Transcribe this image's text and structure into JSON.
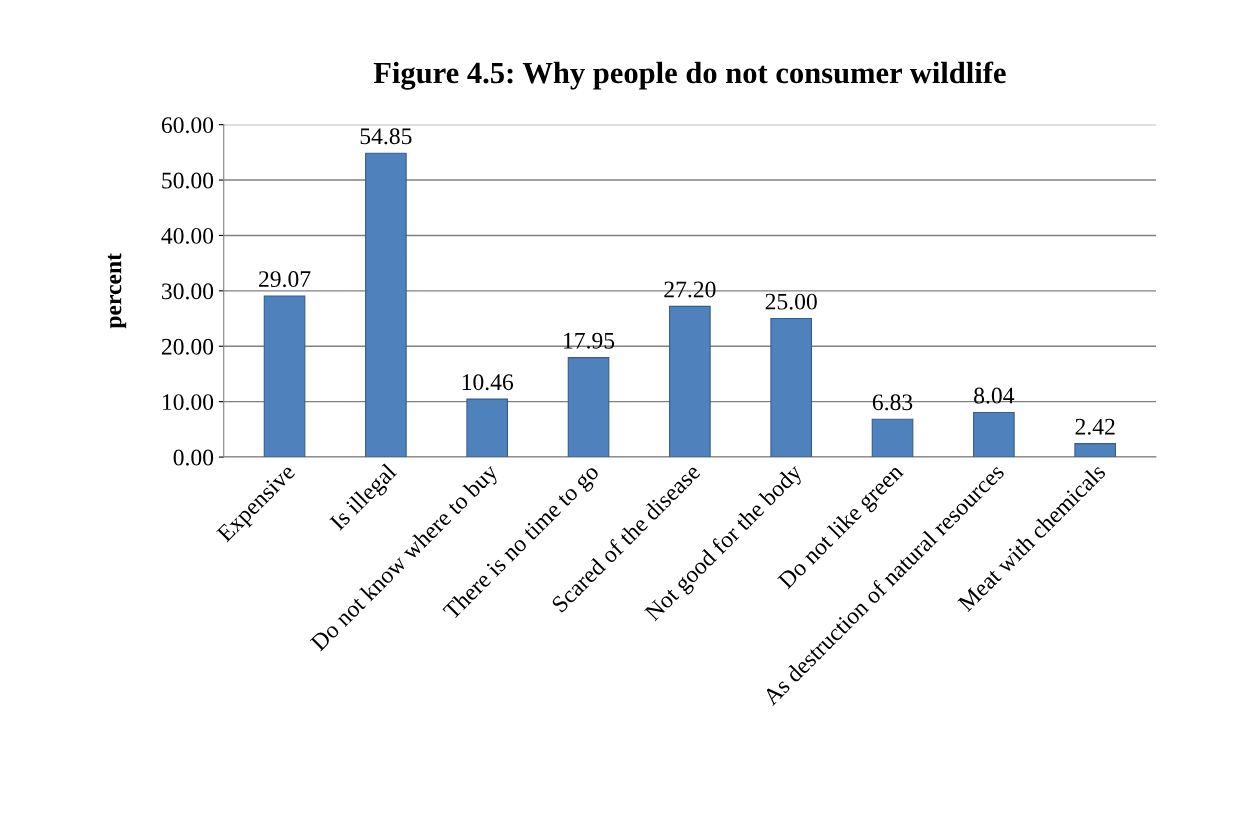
{
  "chart_data": {
    "type": "bar",
    "title": "Figure 4.5: Why people do not consumer wildlife",
    "ylabel": "percent",
    "categories": [
      "Expensive",
      "Is illegal",
      "Do not know where to buy",
      "There is no time to go",
      "Scared of the disease",
      "Not good for the body",
      "Do not like green",
      "As destruction of natural resources",
      "Meat with chemicals"
    ],
    "values": [
      29.07,
      54.85,
      10.46,
      17.95,
      27.2,
      25.0,
      6.83,
      8.04,
      2.42
    ],
    "value_labels": [
      "29.07",
      "54.85",
      "10.46",
      "17.95",
      "27.20",
      "25.00",
      "6.83",
      "8.04",
      "2.42"
    ],
    "color": "#4f81bd",
    "ylim": [
      0,
      60
    ],
    "yticks": [
      {
        "value": 0,
        "label": "0.00"
      },
      {
        "value": 10,
        "label": "10.00"
      },
      {
        "value": 20,
        "label": "20.00"
      },
      {
        "value": 30,
        "label": "30.00"
      },
      {
        "value": 40,
        "label": "40.00"
      },
      {
        "value": 50,
        "label": "50.00"
      },
      {
        "value": 60,
        "label": "60.00"
      }
    ],
    "grid": "y"
  }
}
